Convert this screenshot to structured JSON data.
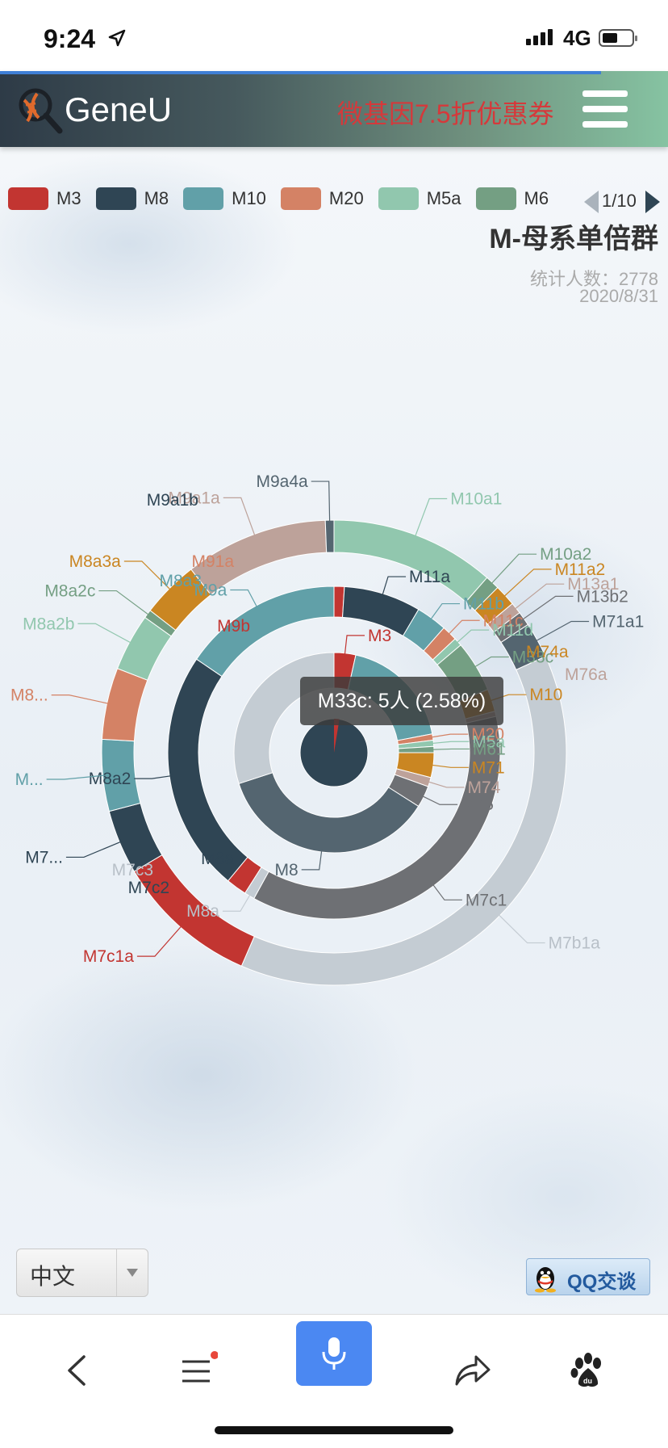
{
  "status": {
    "time": "9:24",
    "network": "4G"
  },
  "header": {
    "title": "GeneU",
    "promo": "微基因7.5折优惠券"
  },
  "legend": {
    "items": [
      {
        "name": "M3",
        "color": "#c23531"
      },
      {
        "name": "M8",
        "color": "#2f4554"
      },
      {
        "name": "M10",
        "color": "#61a0a8"
      },
      {
        "name": "M20",
        "color": "#d48265"
      },
      {
        "name": "M5a",
        "color": "#91c7ae"
      },
      {
        "name": "M6",
        "color": "#749f83"
      }
    ],
    "page": "1/10"
  },
  "chart_data": {
    "type": "sunburst",
    "title": "M-母系单倍群",
    "subtitle_count": "统计人数：2778",
    "subtitle_date": "2020/8/31",
    "tooltip": "M33c: 5人 (2.58%)",
    "rings": [
      {
        "ring": 1,
        "segments": [
          {
            "name": "",
            "value": 100,
            "color": "#2f4554"
          }
        ]
      },
      {
        "ring": 2,
        "segments": [
          {
            "name": "M3",
            "value": 3.5,
            "color": "#c23531"
          },
          {
            "name": "",
            "value": 18.5,
            "color": "#61a0a8"
          },
          {
            "name": "M20",
            "value": 1.0,
            "color": "#d48265"
          },
          {
            "name": "M5a",
            "value": 1.0,
            "color": "#91c7ae"
          },
          {
            "name": "M61",
            "value": 1.0,
            "color": "#749f83"
          },
          {
            "name": "M71",
            "value": 4.0,
            "color": "#ca8622"
          },
          {
            "name": "M74",
            "value": 1.5,
            "color": "#bda29a"
          },
          {
            "name": "M75",
            "value": 3.5,
            "color": "#6e7074"
          },
          {
            "name": "M8",
            "value": 36.0,
            "color": "#546570"
          },
          {
            "name": "",
            "value": 30.0,
            "color": "#c4ccd3"
          }
        ]
      },
      {
        "ring": 3,
        "segments": [
          {
            "name": "",
            "value": 1.0,
            "color": "#c23531"
          },
          {
            "name": "M11a",
            "value": 7.5,
            "color": "#2f4554"
          },
          {
            "name": "M11b",
            "value": 3.0,
            "color": "#61a0a8"
          },
          {
            "name": "M11c",
            "value": 1.5,
            "color": "#d48265"
          },
          {
            "name": "M11d",
            "value": 0.8,
            "color": "#91c7ae"
          },
          {
            "name": "M33c",
            "value": 5.0,
            "color": "#749f83"
          },
          {
            "name": "M10",
            "value": 2.2,
            "color": "#ca8622"
          },
          {
            "name": "",
            "value": 0.5,
            "color": "#bda29a"
          },
          {
            "name": "M7c1",
            "value": 36.5,
            "color": "#6e7074"
          },
          {
            "name": "M8a",
            "value": 1.0,
            "color": "#c4ccd3"
          },
          {
            "name": "",
            "value": 2.0,
            "color": "#c23531"
          },
          {
            "name": "M8a2",
            "value": 23.5,
            "color": "#2f4554"
          },
          {
            "name": "M9a",
            "value": 15.5,
            "color": "#61a0a8"
          }
        ]
      },
      {
        "ring": 4,
        "segments": [
          {
            "name": "M10a1",
            "value": 11.5,
            "color": "#91c7ae"
          },
          {
            "name": "M10a2",
            "value": 1.0,
            "color": "#749f83"
          },
          {
            "name": "M11a2",
            "value": 1.5,
            "color": "#ca8622"
          },
          {
            "name": "M13a1",
            "value": 0.8,
            "color": "#bda29a"
          },
          {
            "name": "M13b2",
            "value": 1.0,
            "color": "#6e7074"
          },
          {
            "name": "M71a1",
            "value": 2.5,
            "color": "#546570"
          },
          {
            "name": "M7b1a",
            "value": 38.5,
            "color": "#c4ccd3"
          },
          {
            "name": "M7c1a",
            "value": 10.0,
            "color": "#c23531"
          },
          {
            "name": "M7...",
            "value": 4.5,
            "color": "#2f4554"
          },
          {
            "name": "M...",
            "value": 5.0,
            "color": "#61a0a8"
          },
          {
            "name": "M8...",
            "value": 5.0,
            "color": "#d48265"
          },
          {
            "name": "M8a2b",
            "value": 4.0,
            "color": "#91c7ae"
          },
          {
            "name": "M8a2c",
            "value": 0.6,
            "color": "#749f83"
          },
          {
            "name": "M8a3a",
            "value": 4.0,
            "color": "#ca8622"
          },
          {
            "name": "M9a1a",
            "value": 10.0,
            "color": "#bda29a"
          },
          {
            "name": "M9a4a",
            "value": 0.6,
            "color": "#546570"
          }
        ]
      }
    ],
    "extra_labels": [
      "M76a",
      "M74a",
      "M7c2",
      "M7c3",
      "M8a3",
      "M91a",
      "M9a1b",
      "M9b",
      "M8a"
    ]
  },
  "footer": {
    "language": "中文",
    "qq": "QQ交谈"
  }
}
